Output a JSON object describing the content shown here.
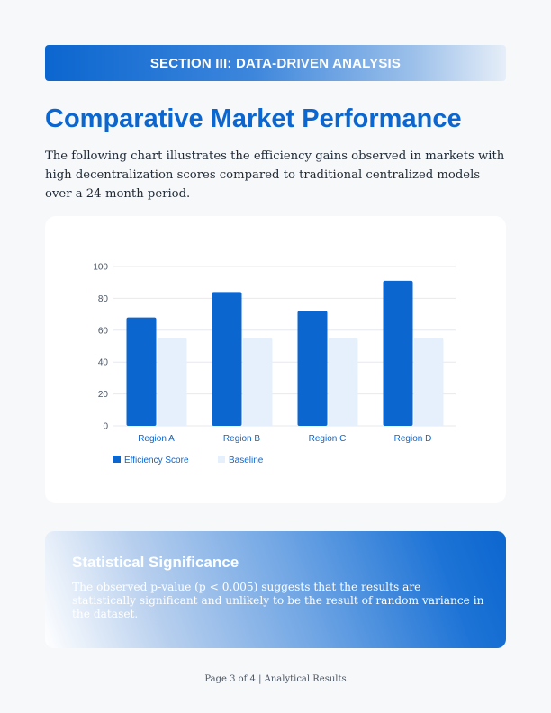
{
  "section_banner": "SECTION III: DATA-DRIVEN ANALYSIS",
  "title": "Comparative Market Performance",
  "intro": "The following chart illustrates the efficiency gains observed in markets with high decentralization scores compared to traditional centralized models over a 24-month period.",
  "colors": {
    "accent": "#0b66cf",
    "baseline": "#e6f0fc",
    "grid": "#e6e9ee",
    "axis_text": "#4a5563"
  },
  "chart_data": {
    "type": "bar",
    "categories": [
      "Region A",
      "Region B",
      "Region C",
      "Region D"
    ],
    "series": [
      {
        "name": "Efficiency Score",
        "values": [
          68,
          84,
          72,
          91
        ],
        "color": "#0b66cf"
      },
      {
        "name": "Baseline",
        "values": [
          55,
          55,
          55,
          55
        ],
        "color": "#e6f0fc"
      }
    ],
    "ylim": [
      0,
      100
    ],
    "yticks": [
      0,
      20,
      40,
      60,
      80,
      100
    ],
    "grid": true,
    "legend_position": "bottom-left"
  },
  "significance": {
    "title": "Statistical Significance",
    "text": "The observed p-value (p < 0.005) suggests that the results are statistically significant and unlikely to be the result of random variance in the dataset."
  },
  "footer": "Page 3 of 4 | Analytical Results"
}
